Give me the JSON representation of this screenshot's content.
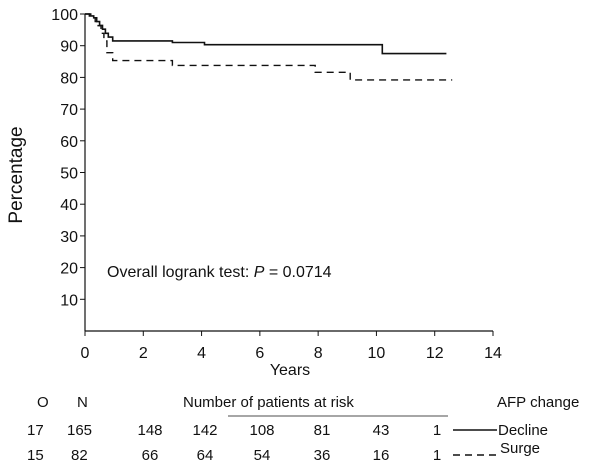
{
  "chart_data": {
    "type": "line",
    "ylabel": "Percentage",
    "xlabel": "Years",
    "xlim": [
      0,
      14
    ],
    "ylim": [
      0,
      100
    ],
    "x_ticks": [
      0,
      2,
      4,
      6,
      8,
      10,
      12,
      14
    ],
    "y_ticks": [
      10,
      20,
      30,
      40,
      50,
      60,
      70,
      80,
      90,
      100
    ],
    "annotation": {
      "prefix": "Overall logrank test: ",
      "p_symbol": "P",
      "p_text": " = 0.0714"
    },
    "series": [
      {
        "name": "Decline",
        "style": "solid",
        "step_points": [
          [
            0,
            100
          ],
          [
            0.15,
            99.4
          ],
          [
            0.3,
            98.8
          ],
          [
            0.4,
            97.6
          ],
          [
            0.5,
            96.4
          ],
          [
            0.6,
            95.2
          ],
          [
            0.7,
            93.9
          ],
          [
            0.8,
            92.7
          ],
          [
            0.95,
            91.5
          ],
          [
            3.0,
            91.0
          ],
          [
            4.1,
            90.3
          ],
          [
            10.2,
            87.5
          ],
          [
            12.4,
            87.5
          ]
        ]
      },
      {
        "name": "Surge",
        "style": "dashed",
        "step_points": [
          [
            0,
            100
          ],
          [
            0.2,
            98.8
          ],
          [
            0.35,
            97.6
          ],
          [
            0.45,
            96.3
          ],
          [
            0.55,
            93.9
          ],
          [
            0.65,
            91.5
          ],
          [
            0.75,
            87.8
          ],
          [
            0.95,
            85.3
          ],
          [
            3.0,
            83.8
          ],
          [
            7.9,
            81.6
          ],
          [
            9.1,
            79.2
          ],
          [
            12.6,
            79.2
          ]
        ]
      }
    ],
    "risk_table": {
      "header_o": "O",
      "header_n": "N",
      "title": "Number of patients at risk",
      "group_header": "AFP change",
      "times": [
        2,
        4,
        6,
        8,
        10,
        12
      ],
      "rows": [
        {
          "o": "17",
          "n": "165",
          "counts": [
            "148",
            "142",
            "108",
            "81",
            "43",
            "1"
          ],
          "label": "Decline",
          "style": "solid"
        },
        {
          "o": "15",
          "n": "82",
          "counts": [
            "66",
            "64",
            "54",
            "36",
            "16",
            "1"
          ],
          "label": "Surge",
          "style": "dashed"
        }
      ]
    }
  }
}
